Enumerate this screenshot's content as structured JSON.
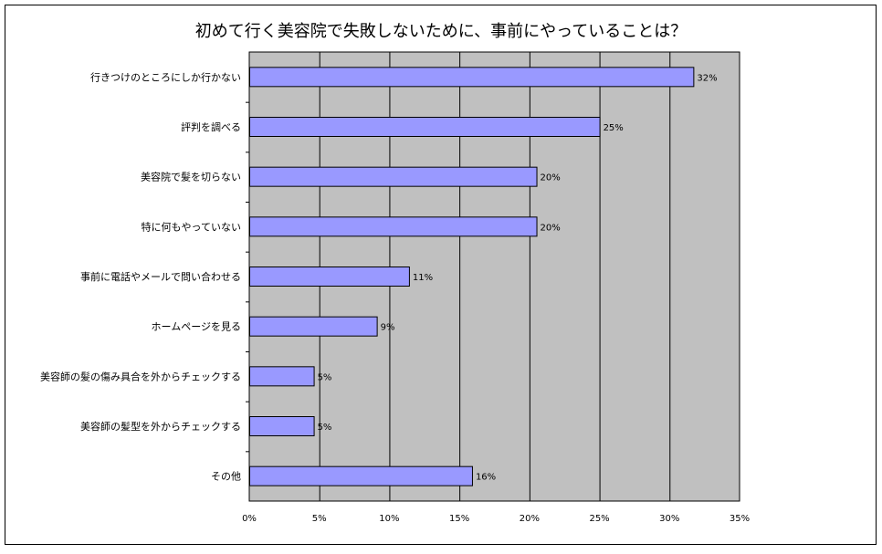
{
  "chart_data": {
    "type": "bar",
    "orientation": "horizontal",
    "title": "初めて行く美容院で失敗しないために、事前にやっていることは？",
    "xlabel": "",
    "ylabel": "",
    "xlim": [
      0,
      35
    ],
    "x_ticks": [
      "0%",
      "5%",
      "10%",
      "15%",
      "20%",
      "25%",
      "30%",
      "35%"
    ],
    "x_tick_values": [
      0,
      5,
      10,
      15,
      20,
      25,
      30,
      35
    ],
    "grid": true,
    "legend": "none",
    "categories": [
      "行きつけのところにしか行かない",
      "評判を調べる",
      "美容院で髪を切らない",
      "特に何もやっていない",
      "事前に電話やメールで問い合わせる",
      "ホームページを見る",
      "美容師の髪の傷み具合を外からチェックする",
      "美容師の髪型を外からチェックする",
      "その他"
    ],
    "values": [
      31.7,
      25.0,
      20.5,
      20.5,
      11.4,
      9.1,
      4.6,
      4.6,
      15.9
    ],
    "data_labels": [
      "32%",
      "25%",
      "20%",
      "20%",
      "11%",
      "9%",
      "5%",
      "5%",
      "16%"
    ],
    "colors": {
      "bar": "#9999ff",
      "plot_bg": "#c0c0c0",
      "border": "#000000"
    }
  }
}
